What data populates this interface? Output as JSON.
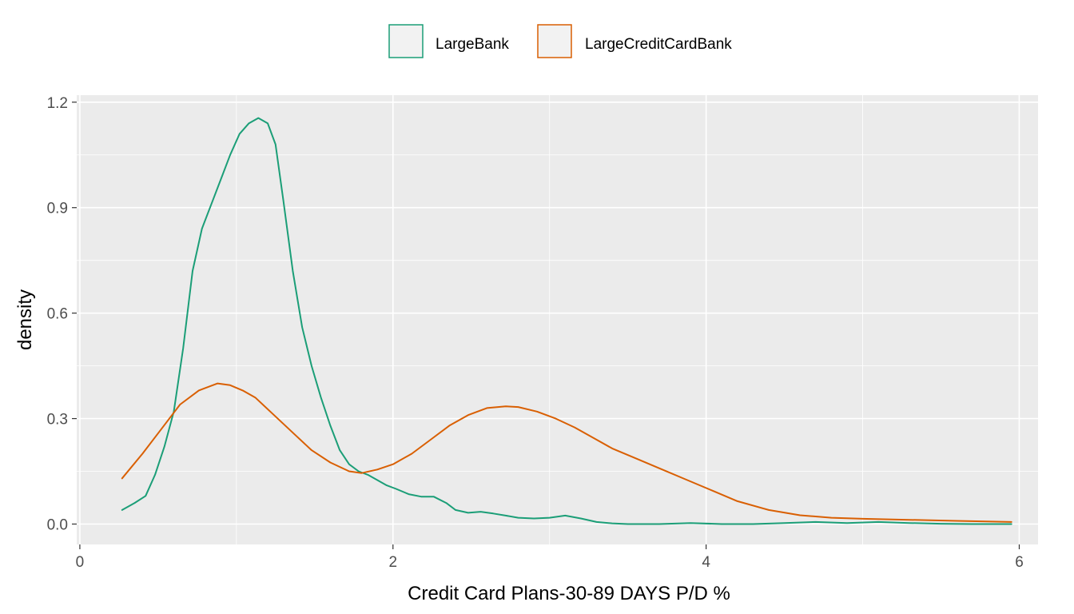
{
  "chart_data": {
    "type": "line",
    "xlabel": "Credit Card Plans-30-89 DAYS P/D %",
    "ylabel": "density",
    "xlim": [
      -0.02,
      6.12
    ],
    "ylim": [
      -0.058,
      1.22
    ],
    "x_ticks": [
      0,
      2,
      4,
      6
    ],
    "x_tick_labels": [
      "0",
      "2",
      "4",
      "6"
    ],
    "y_ticks": [
      0.0,
      0.3,
      0.6,
      0.9,
      1.2
    ],
    "y_tick_labels": [
      "0.0",
      "0.3",
      "0.6",
      "0.9",
      "1.2"
    ],
    "grid": true,
    "legend_position": "top",
    "series": [
      {
        "name": "LargeBank",
        "color": "#1B9E77",
        "x": [
          0.27,
          0.35,
          0.42,
          0.48,
          0.54,
          0.6,
          0.66,
          0.72,
          0.78,
          0.84,
          0.9,
          0.96,
          1.02,
          1.08,
          1.14,
          1.2,
          1.25,
          1.3,
          1.36,
          1.42,
          1.48,
          1.54,
          1.6,
          1.66,
          1.72,
          1.78,
          1.84,
          1.9,
          1.96,
          2.02,
          2.1,
          2.18,
          2.26,
          2.34,
          2.4,
          2.48,
          2.56,
          2.64,
          2.72,
          2.8,
          2.9,
          3.0,
          3.1,
          3.2,
          3.3,
          3.4,
          3.5,
          3.7,
          3.9,
          4.1,
          4.3,
          4.5,
          4.7,
          4.9,
          5.1,
          5.3,
          5.5,
          5.7,
          5.95
        ],
        "y": [
          0.04,
          0.06,
          0.08,
          0.14,
          0.22,
          0.32,
          0.5,
          0.72,
          0.84,
          0.91,
          0.98,
          1.05,
          1.11,
          1.14,
          1.155,
          1.14,
          1.08,
          0.92,
          0.72,
          0.56,
          0.45,
          0.36,
          0.28,
          0.21,
          0.17,
          0.15,
          0.14,
          0.125,
          0.11,
          0.1,
          0.085,
          0.078,
          0.078,
          0.06,
          0.04,
          0.032,
          0.035,
          0.03,
          0.024,
          0.018,
          0.016,
          0.018,
          0.024,
          0.016,
          0.006,
          0.002,
          0.0,
          0.0,
          0.003,
          0.0,
          0.0,
          0.003,
          0.006,
          0.003,
          0.006,
          0.003,
          0.001,
          0.0,
          0.0
        ]
      },
      {
        "name": "LargeCreditCardBank",
        "color": "#D95F02",
        "x": [
          0.27,
          0.4,
          0.52,
          0.64,
          0.76,
          0.88,
          0.96,
          1.04,
          1.12,
          1.24,
          1.36,
          1.48,
          1.6,
          1.72,
          1.8,
          1.9,
          2.0,
          2.12,
          2.24,
          2.36,
          2.48,
          2.6,
          2.72,
          2.8,
          2.92,
          3.04,
          3.16,
          3.28,
          3.4,
          3.56,
          3.72,
          3.88,
          4.04,
          4.2,
          4.4,
          4.6,
          4.8,
          5.0,
          5.3,
          5.6,
          5.95
        ],
        "y": [
          0.13,
          0.2,
          0.27,
          0.34,
          0.38,
          0.4,
          0.395,
          0.38,
          0.36,
          0.31,
          0.26,
          0.21,
          0.175,
          0.15,
          0.145,
          0.155,
          0.17,
          0.2,
          0.24,
          0.28,
          0.31,
          0.33,
          0.335,
          0.333,
          0.32,
          0.3,
          0.275,
          0.245,
          0.215,
          0.185,
          0.155,
          0.125,
          0.095,
          0.065,
          0.04,
          0.025,
          0.018,
          0.015,
          0.012,
          0.009,
          0.006
        ]
      }
    ]
  }
}
